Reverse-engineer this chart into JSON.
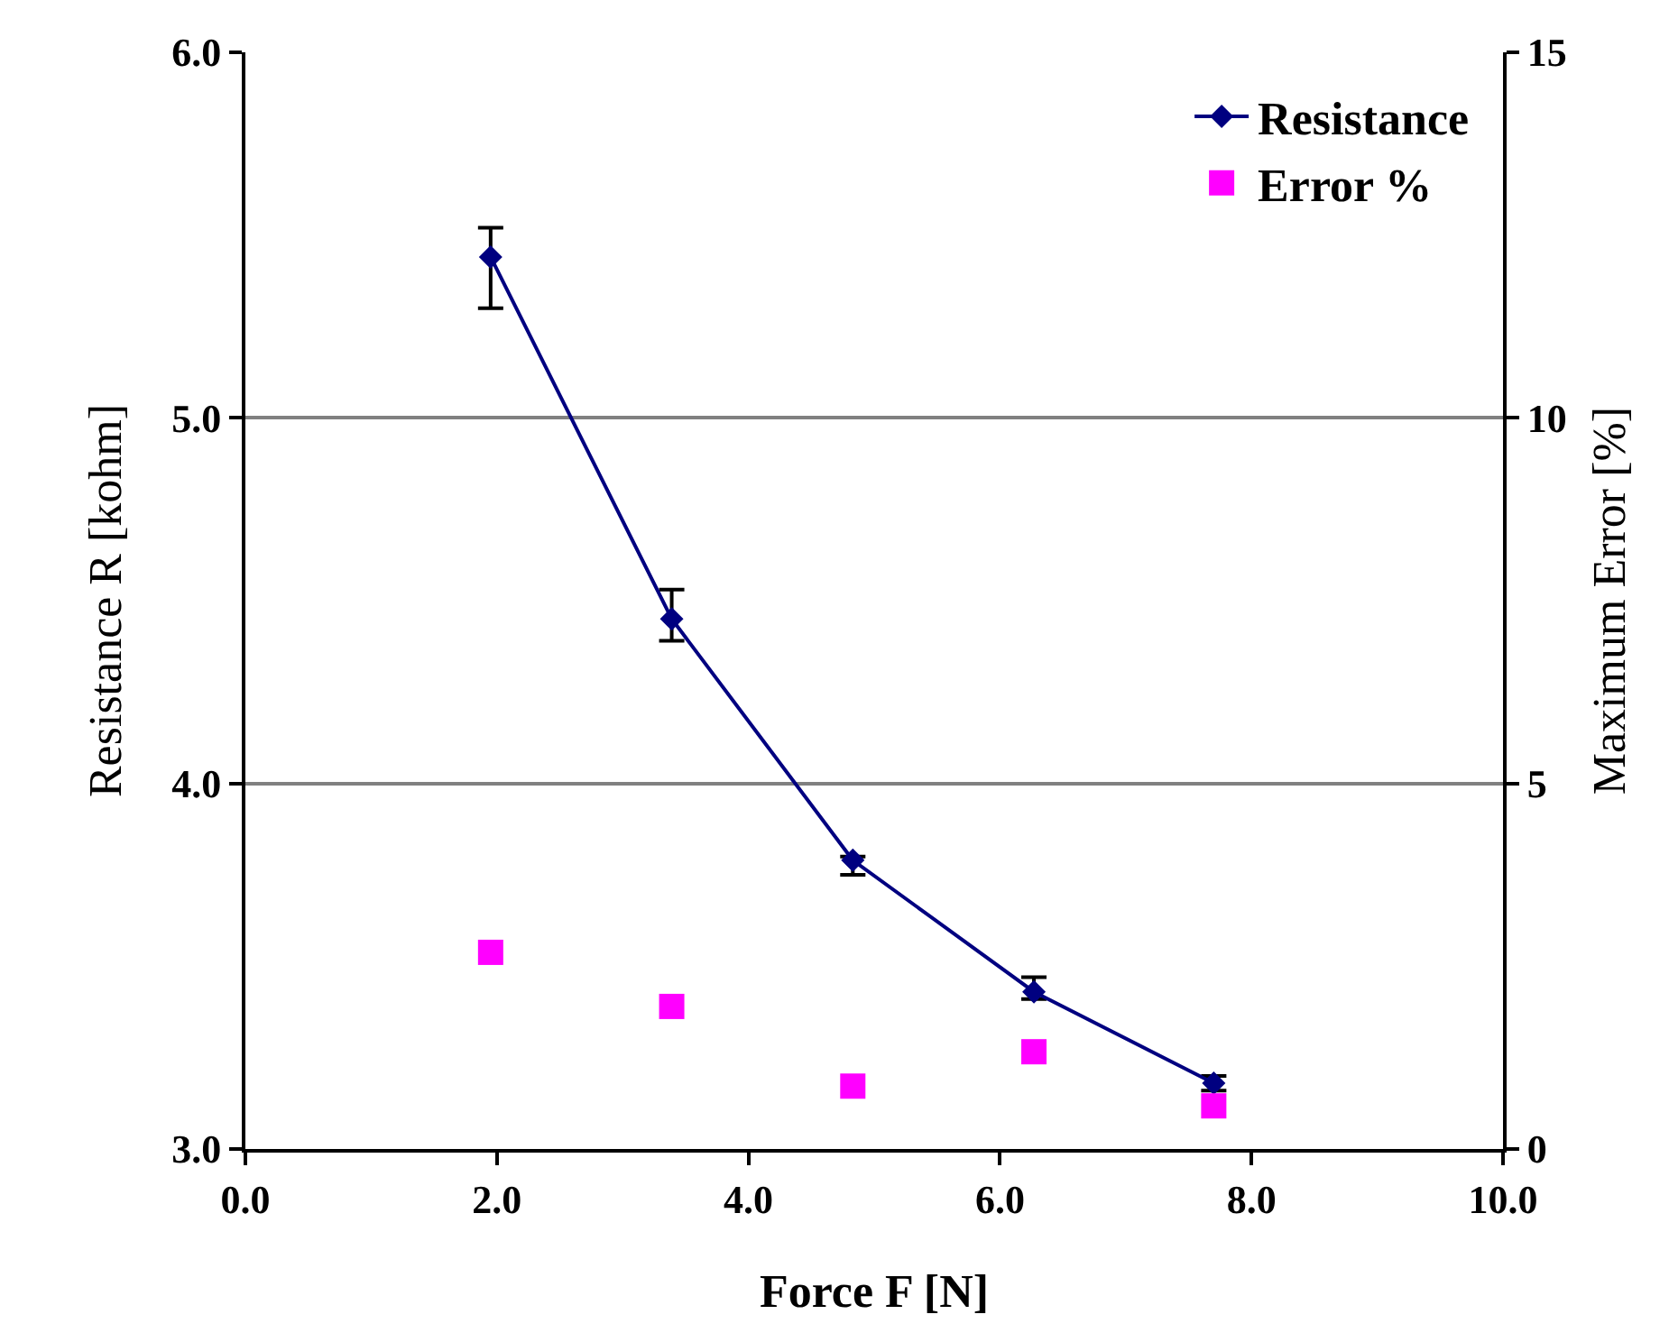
{
  "chart_data": {
    "type": "line",
    "xlabel": "Force F [N]",
    "ylabel": "Resistance R [kohm]",
    "y2label": "Maximum Error [%]",
    "x": [
      1.95,
      3.39,
      4.83,
      6.27,
      7.7
    ],
    "series": [
      {
        "name": "Resistance",
        "type": "line",
        "color": "#000080",
        "marker": "diamond",
        "values": [
          5.44,
          4.45,
          3.79,
          3.43,
          3.18
        ],
        "errors": [
          [
            5.3,
            5.52
          ],
          [
            4.39,
            4.53
          ],
          [
            3.75,
            3.8
          ],
          [
            3.41,
            3.47
          ],
          [
            3.16,
            3.2
          ]
        ]
      },
      {
        "name": "Error %",
        "type": "scatter",
        "axis": "y2",
        "color": "#ff00ff",
        "marker": "square",
        "values": [
          2.69,
          1.95,
          0.86,
          1.33,
          0.59
        ]
      }
    ],
    "xlim": [
      0,
      10
    ],
    "xticks": [
      {
        "value": 0,
        "label": "0.0"
      },
      {
        "value": 2,
        "label": "2.0"
      },
      {
        "value": 4,
        "label": "4.0"
      },
      {
        "value": 6,
        "label": "6.0"
      },
      {
        "value": 8,
        "label": "8.0"
      },
      {
        "value": 10,
        "label": "10.0"
      }
    ],
    "ylim": [
      3,
      6
    ],
    "yticks": [
      {
        "value": 3,
        "label": "3.0"
      },
      {
        "value": 4,
        "label": "4.0"
      },
      {
        "value": 5,
        "label": "5.0"
      },
      {
        "value": 6,
        "label": "6.0"
      }
    ],
    "y2lim": [
      0,
      15
    ],
    "y2ticks": [
      0,
      5,
      10,
      15
    ],
    "grid": "y",
    "legend": "top right"
  }
}
